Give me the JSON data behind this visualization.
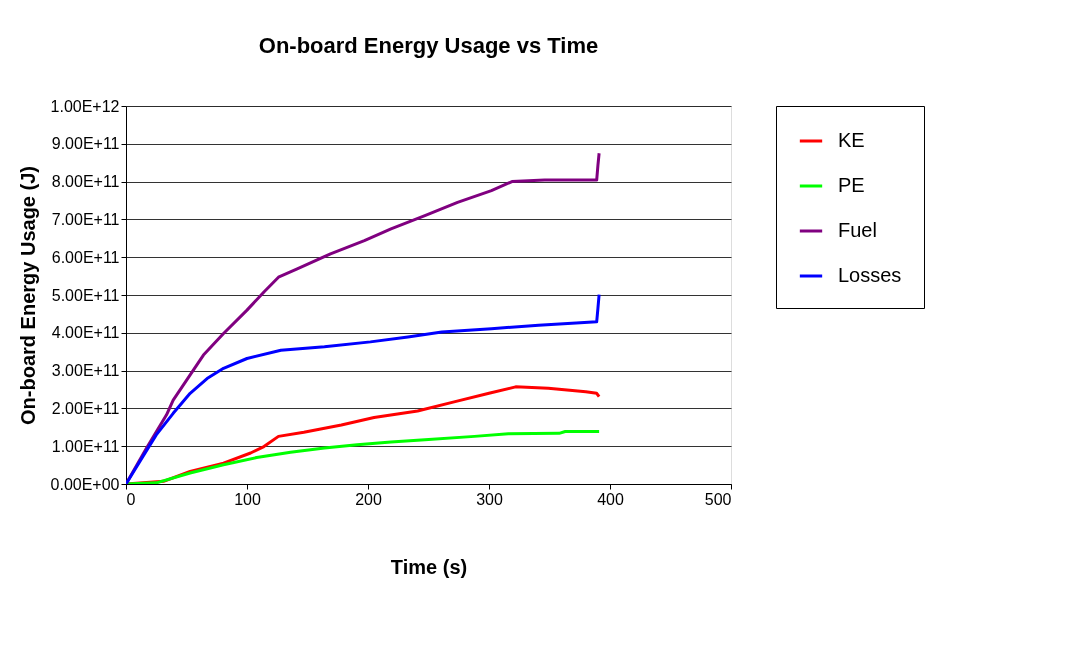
{
  "chart_data": {
    "type": "line",
    "title": "On-board Energy Usage vs Time",
    "xlabel": "Time (s)",
    "ylabel": "On-board Energy Usage (J)",
    "xlim": [
      0,
      500
    ],
    "xticks": [
      0,
      100,
      200,
      300,
      400,
      500
    ],
    "ylim": [
      0,
      1000000000000.0
    ],
    "yticks": [
      {
        "value": 0,
        "label": "0.00E+00"
      },
      {
        "value": 100000000000.0,
        "label": "1.00E+11"
      },
      {
        "value": 200000000000.0,
        "label": "2.00E+11"
      },
      {
        "value": 300000000000.0,
        "label": "3.00E+11"
      },
      {
        "value": 400000000000.0,
        "label": "4.00E+11"
      },
      {
        "value": 500000000000.0,
        "label": "5.00E+11"
      },
      {
        "value": 600000000000.0,
        "label": "6.00E+11"
      },
      {
        "value": 700000000000.0,
        "label": "7.00E+11"
      },
      {
        "value": 800000000000.0,
        "label": "8.00E+11"
      },
      {
        "value": 900000000000.0,
        "label": "9.00E+11"
      },
      {
        "value": 1000000000000.0,
        "label": "1.00E+12"
      }
    ],
    "grid": "y",
    "legend": "right",
    "marker": "none",
    "line_style": "solid",
    "series": [
      {
        "name": "KE",
        "color": "#ff0000",
        "x": [
          0,
          31,
          53,
          80.6,
          103,
          114,
          126,
          147,
          178,
          205,
          241,
          272,
          300,
          322,
          349,
          380,
          389,
          391
        ],
        "values": [
          0,
          7000000000.0,
          33000000000.0,
          55000000000.0,
          82000000000.0,
          99000000000.0,
          126000000000.0,
          137000000000.0,
          156000000000.0,
          176000000000.0,
          193000000000.0,
          218000000000.0,
          240000000000.0,
          257000000000.0,
          253000000000.0,
          244000000000.0,
          240000000000.0,
          231000000000.0
        ]
      },
      {
        "name": "PE",
        "color": "#00ff00",
        "x": [
          0,
          25,
          53,
          80.6,
          108,
          136,
          164,
          191,
          219,
          247,
          288,
          316,
          358,
          363,
          391
        ],
        "values": [
          0,
          3000000000.0,
          29000000000.0,
          51000000000.0,
          70000000000.0,
          84000000000.0,
          95000000000.0,
          104000000000.0,
          111000000000.0,
          117000000000.0,
          126000000000.0,
          133000000000.0,
          134000000000.0,
          139000000000.0,
          139000000000.0
        ]
      },
      {
        "name": "Fuel",
        "color": "#800080",
        "x": [
          0,
          17,
          33.5,
          39,
          64,
          80.6,
          100,
          114,
          126,
          141.5,
          169,
          197,
          219,
          247,
          274,
          302,
          319,
          346,
          389,
          390,
          391
        ],
        "values": [
          0,
          95000000000.0,
          183000000000.0,
          222000000000.0,
          341000000000.0,
          398000000000.0,
          460000000000.0,
          508000000000.0,
          547000000000.0,
          569000000000.0,
          609000000000.0,
          644000000000.0,
          675000000000.0,
          710000000000.0,
          745000000000.0,
          776000000000.0,
          800000000000.0,
          804000000000.0,
          804000000000.0,
          842000000000.0,
          875000000000.0
        ]
      },
      {
        "name": "Losses",
        "color": "#0000ff",
        "x": [
          0,
          14,
          25,
          39,
          53,
          67,
          80.6,
          100,
          128,
          164,
          202,
          233,
          261,
          302,
          341,
          372,
          389,
          390,
          391
        ],
        "values": [
          0,
          73000000000.0,
          130000000000.0,
          187000000000.0,
          240000000000.0,
          279000000000.0,
          306000000000.0,
          332000000000.0,
          354000000000.0,
          363000000000.0,
          376000000000.0,
          389000000000.0,
          402000000000.0,
          411000000000.0,
          420000000000.0,
          426000000000.0,
          429000000000.0,
          464000000000.0,
          501000000000.0
        ]
      }
    ]
  }
}
